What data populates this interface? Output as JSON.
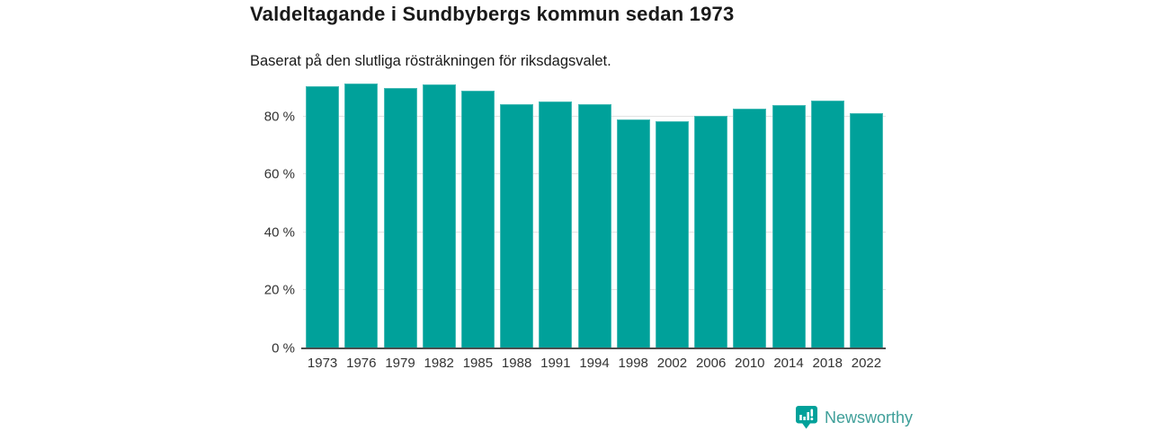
{
  "header": {
    "title": "Valdeltagande i Sundbybergs kommun sedan 1973",
    "subtitle": "Baserat på den slutliga rösträkningen för riksdagsvalet."
  },
  "chart_data": {
    "type": "bar",
    "title": "Valdeltagande i Sundbybergs kommun sedan 1973",
    "subtitle": "Baserat på den slutliga rösträkningen för riksdagsvalet.",
    "categories": [
      "1973",
      "1976",
      "1979",
      "1982",
      "1985",
      "1988",
      "1991",
      "1994",
      "1998",
      "2002",
      "2006",
      "2010",
      "2014",
      "2018",
      "2022"
    ],
    "values": [
      90.5,
      91.4,
      89.9,
      91.0,
      89.0,
      84.2,
      85.1,
      84.3,
      79.0,
      78.4,
      80.3,
      82.6,
      84.0,
      85.4,
      81.0
    ],
    "unit": "%",
    "xlabel": "",
    "ylabel": "",
    "ylim": [
      0,
      100
    ],
    "yticks": [
      {
        "value": 0,
        "label": "0 %"
      },
      {
        "value": 20,
        "label": "20 %"
      },
      {
        "value": 40,
        "label": "40 %"
      },
      {
        "value": 60,
        "label": "60 %"
      },
      {
        "value": 80,
        "label": "80 %"
      }
    ],
    "grid": "horizontal",
    "legend": "none",
    "bar_color": "#00a19a"
  },
  "footer": {
    "brand": "Newsworthy",
    "logo_icon": "newsworthy-logo-icon"
  },
  "colors": {
    "background": "#ffffff",
    "accent": "#00a19a",
    "title": "#1a1a1a",
    "axis_text": "#333333",
    "gridline": "#e2e2e2",
    "baseline": "#4d4d4d",
    "brand_text": "#3f9f99"
  }
}
